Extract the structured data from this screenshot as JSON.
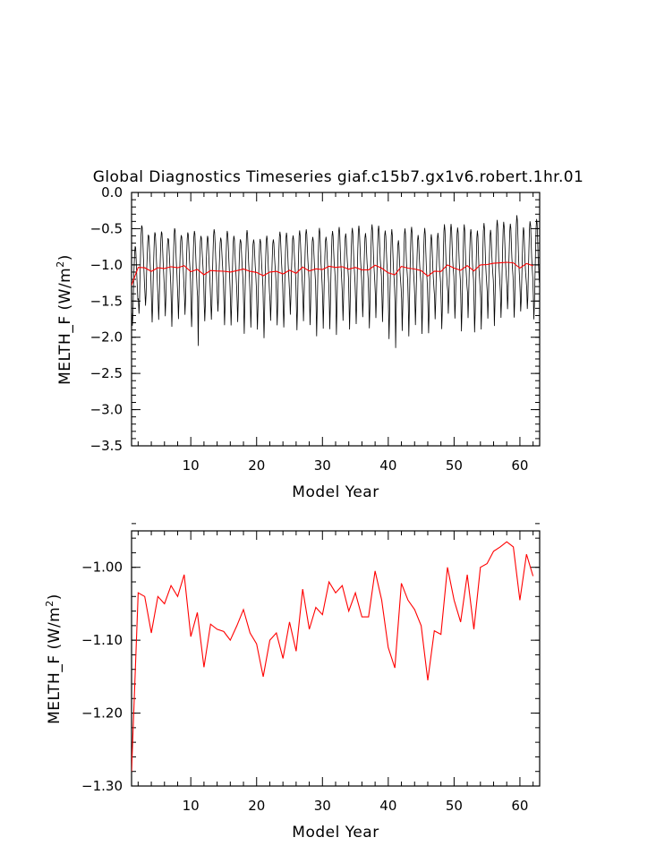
{
  "title": "Global Diagnostics Timeseries giaf.c15b7.gx1v6.robert.1hr.01",
  "colors": {
    "monthly_line": "#000000",
    "annual_line": "#ff0000",
    "axes": "#000000"
  },
  "chart_data": [
    {
      "type": "line",
      "title": "Global Diagnostics Timeseries giaf.c15b7.gx1v6.robert.1hr.01",
      "xlabel": "Model Year",
      "ylabel_main": "MELTH_F (W/m",
      "ylabel_sup": "2",
      "ylabel_tail": ")",
      "xlim": [
        1,
        63
      ],
      "ylim": [
        -3.5,
        0.0
      ],
      "xticks": [
        10,
        20,
        30,
        40,
        50,
        60
      ],
      "xtick_labels": [
        "10",
        "20",
        "30",
        "40",
        "50",
        "60"
      ],
      "yticks": [
        -3.5,
        -3.0,
        -2.5,
        -2.0,
        -1.5,
        -1.0,
        -0.5,
        0.0
      ],
      "ytick_labels": [
        "−3.5",
        "−3.0",
        "−2.5",
        "−2.0",
        "−1.5",
        "−1.0",
        "−0.5",
        "0.0"
      ],
      "grid": false,
      "series": [
        {
          "kind": "monthly",
          "color": "#000000",
          "x_start": 1.04,
          "x_step": 0.08333,
          "annual_cycle": [
            -1.55,
            -1.85,
            -1.62,
            -1.25,
            -0.95,
            -0.7,
            -0.6,
            -0.65,
            -0.85,
            -1.05,
            -1.2,
            -1.35
          ],
          "cycle_peak_mean": -0.63,
          "cycle_trough_mean": -1.83
        },
        {
          "kind": "annual",
          "color": "#ff0000",
          "x": [
            1,
            2,
            3,
            4,
            5,
            6,
            7,
            8,
            9,
            10,
            11,
            12,
            13,
            14,
            15,
            16,
            17,
            18,
            19,
            20,
            21,
            22,
            23,
            24,
            25,
            26,
            27,
            28,
            29,
            30,
            31,
            32,
            33,
            34,
            35,
            36,
            37,
            38,
            39,
            40,
            41,
            42,
            43,
            44,
            45,
            46,
            47,
            48,
            49,
            50,
            51,
            52,
            53,
            54,
            55,
            56,
            57,
            58,
            59,
            60,
            61,
            62
          ],
          "values": [
            -1.28,
            -1.035,
            -1.04,
            -1.09,
            -1.04,
            -1.05,
            -1.025,
            -1.04,
            -1.01,
            -1.095,
            -1.062,
            -1.137,
            -1.078,
            -1.085,
            -1.088,
            -1.1,
            -1.08,
            -1.058,
            -1.09,
            -1.105,
            -1.15,
            -1.1,
            -1.09,
            -1.125,
            -1.075,
            -1.115,
            -1.03,
            -1.085,
            -1.055,
            -1.065,
            -1.02,
            -1.035,
            -1.025,
            -1.06,
            -1.035,
            -1.068,
            -1.068,
            -1.005,
            -1.045,
            -1.11,
            -1.138,
            -1.022,
            -1.045,
            -1.058,
            -1.08,
            -1.155,
            -1.087,
            -1.092,
            -1.0,
            -1.045,
            -1.075,
            -1.01,
            -1.085,
            -1.0,
            -0.995,
            -0.978,
            -0.972,
            -0.965,
            -0.972,
            -1.045,
            -0.982,
            -1.012
          ]
        }
      ]
    },
    {
      "type": "line",
      "xlabel": "Model Year",
      "ylabel_main": "MELTH_F (W/m",
      "ylabel_sup": "2",
      "ylabel_tail": ")",
      "xlim": [
        1,
        63
      ],
      "ylim": [
        -1.3,
        -0.95
      ],
      "xticks": [
        10,
        20,
        30,
        40,
        50,
        60
      ],
      "xtick_labels": [
        "10",
        "20",
        "30",
        "40",
        "50",
        "60"
      ],
      "yticks": [
        -1.3,
        -1.2,
        -1.1,
        -1.0
      ],
      "ytick_labels": [
        "−1.30",
        "−1.20",
        "−1.10",
        "−1.00"
      ],
      "grid": false,
      "series": [
        {
          "kind": "annual",
          "color": "#ff0000",
          "x": [
            1,
            2,
            3,
            4,
            5,
            6,
            7,
            8,
            9,
            10,
            11,
            12,
            13,
            14,
            15,
            16,
            17,
            18,
            19,
            20,
            21,
            22,
            23,
            24,
            25,
            26,
            27,
            28,
            29,
            30,
            31,
            32,
            33,
            34,
            35,
            36,
            37,
            38,
            39,
            40,
            41,
            42,
            43,
            44,
            45,
            46,
            47,
            48,
            49,
            50,
            51,
            52,
            53,
            54,
            55,
            56,
            57,
            58,
            59,
            60,
            61,
            62
          ],
          "values": [
            -1.28,
            -1.035,
            -1.04,
            -1.09,
            -1.04,
            -1.05,
            -1.025,
            -1.04,
            -1.01,
            -1.095,
            -1.062,
            -1.137,
            -1.078,
            -1.085,
            -1.088,
            -1.1,
            -1.08,
            -1.058,
            -1.09,
            -1.105,
            -1.15,
            -1.1,
            -1.09,
            -1.125,
            -1.075,
            -1.115,
            -1.03,
            -1.085,
            -1.055,
            -1.065,
            -1.02,
            -1.035,
            -1.025,
            -1.06,
            -1.035,
            -1.068,
            -1.068,
            -1.005,
            -1.045,
            -1.11,
            -1.138,
            -1.022,
            -1.045,
            -1.058,
            -1.08,
            -1.155,
            -1.087,
            -1.092,
            -1.0,
            -1.045,
            -1.075,
            -1.01,
            -1.085,
            -1.0,
            -0.995,
            -0.978,
            -0.972,
            -0.965,
            -0.972,
            -1.045,
            -0.982,
            -1.012
          ]
        }
      ]
    }
  ]
}
